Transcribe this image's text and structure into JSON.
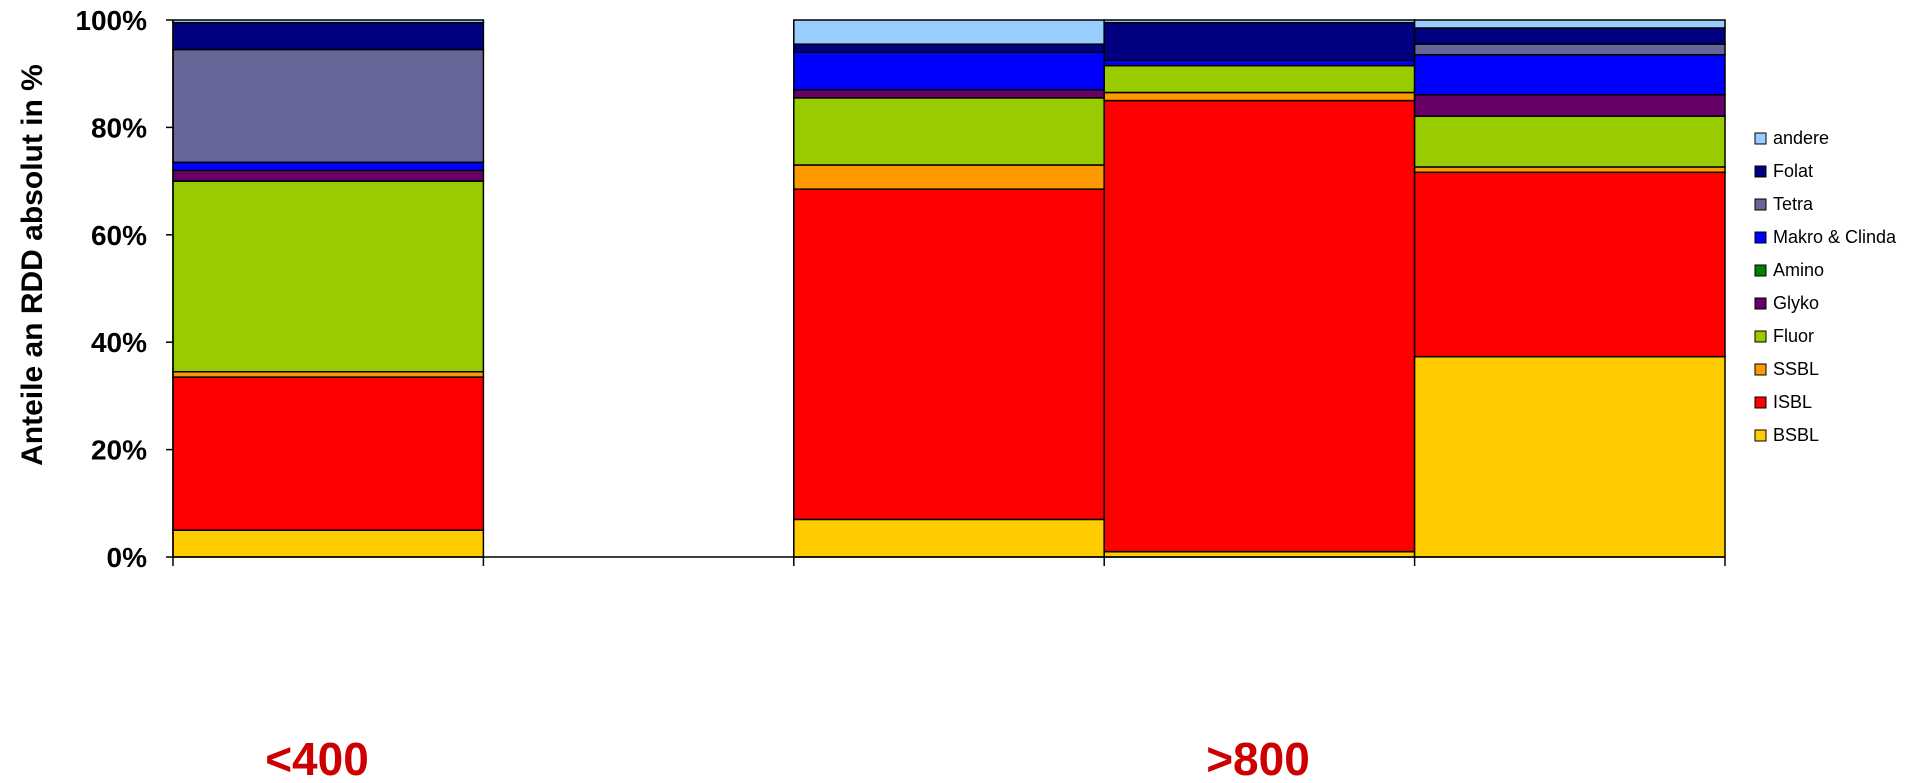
{
  "chart_data": {
    "type": "bar",
    "stacked": true,
    "normalized": true,
    "title": "",
    "xlabel": "",
    "ylabel": "Anteile an RDD absolut in %",
    "ylim": [
      0,
      100
    ],
    "yticks": [
      "0%",
      "20%",
      "40%",
      "60%",
      "80%",
      "100%"
    ],
    "grid": false,
    "legend_position": "right",
    "categories": [
      "",
      "",
      "",
      "",
      ""
    ],
    "group_labels": [
      "<400",
      ">800"
    ],
    "series": [
      {
        "name": "BSBL",
        "color": "#ffcc00",
        "values": [
          5,
          0,
          7,
          1,
          37.5
        ]
      },
      {
        "name": "ISBL",
        "color": "#ff0000",
        "values": [
          28.5,
          0,
          61.5,
          84,
          34.5
        ]
      },
      {
        "name": "SSBL",
        "color": "#ff9900",
        "values": [
          1,
          0,
          4.5,
          1.5,
          1
        ]
      },
      {
        "name": "Fluor",
        "color": "#99cc00",
        "values": [
          35.5,
          0,
          12.5,
          5,
          9.5
        ]
      },
      {
        "name": "Glyko",
        "color": "#660066",
        "values": [
          2,
          0,
          1.5,
          0,
          4
        ]
      },
      {
        "name": "Amino",
        "color": "#008000",
        "values": [
          0,
          0,
          0,
          0,
          0
        ]
      },
      {
        "name": "Makro & Clinda",
        "color": "#0000ff",
        "values": [
          1.5,
          0,
          7,
          1,
          7.5
        ]
      },
      {
        "name": "Tetra",
        "color": "#666699",
        "values": [
          21,
          0,
          0,
          0,
          2
        ]
      },
      {
        "name": "Folat",
        "color": "#000080",
        "values": [
          5,
          0,
          1.5,
          7,
          3
        ]
      },
      {
        "name": "andere",
        "color": "#99ccff",
        "values": [
          0.5,
          0,
          4.5,
          0.5,
          1.5
        ]
      }
    ]
  }
}
